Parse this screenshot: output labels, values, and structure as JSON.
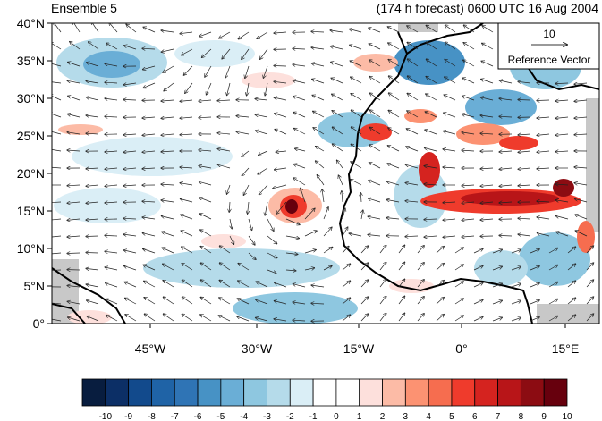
{
  "header": {
    "left_title": "Ensemble 5",
    "right_title": "(174 h forecast) 0600 UTC 16 Aug 2004"
  },
  "map": {
    "lat_labels": [
      "40°N",
      "35°N",
      "30°N",
      "25°N",
      "20°N",
      "15°N",
      "10°N",
      "5°N",
      "0°"
    ],
    "lon_labels": [
      "45°W",
      "30°W",
      "15°W",
      "0°",
      "15°E"
    ],
    "region": "West Africa / Eastern Tropical Atlantic",
    "lat_range": [
      0,
      40
    ],
    "lon_range": [
      -58,
      20
    ]
  },
  "reference_vector": {
    "value": "10",
    "label": "Reference Vector"
  },
  "colorbar": {
    "labels": [
      "-10",
      "-9",
      "-8",
      "-7",
      "-6",
      "-5",
      "-4",
      "-3",
      "-2",
      "-1",
      "0",
      "1",
      "2",
      "3",
      "4",
      "5",
      "6",
      "7",
      "8",
      "9",
      "10"
    ],
    "colors": [
      "#081d3f",
      "#0c2f66",
      "#124a8c",
      "#1f63a6",
      "#2f74b5",
      "#4792c5",
      "#6aaed6",
      "#8ec7e0",
      "#b5dbea",
      "#daeef6",
      "#ffffff",
      "#ffffff",
      "#fde0dc",
      "#fcbba6",
      "#fc9272",
      "#f66d4f",
      "#ef3b2c",
      "#d5231f",
      "#b81518",
      "#8c0c12",
      "#67000d"
    ]
  }
}
